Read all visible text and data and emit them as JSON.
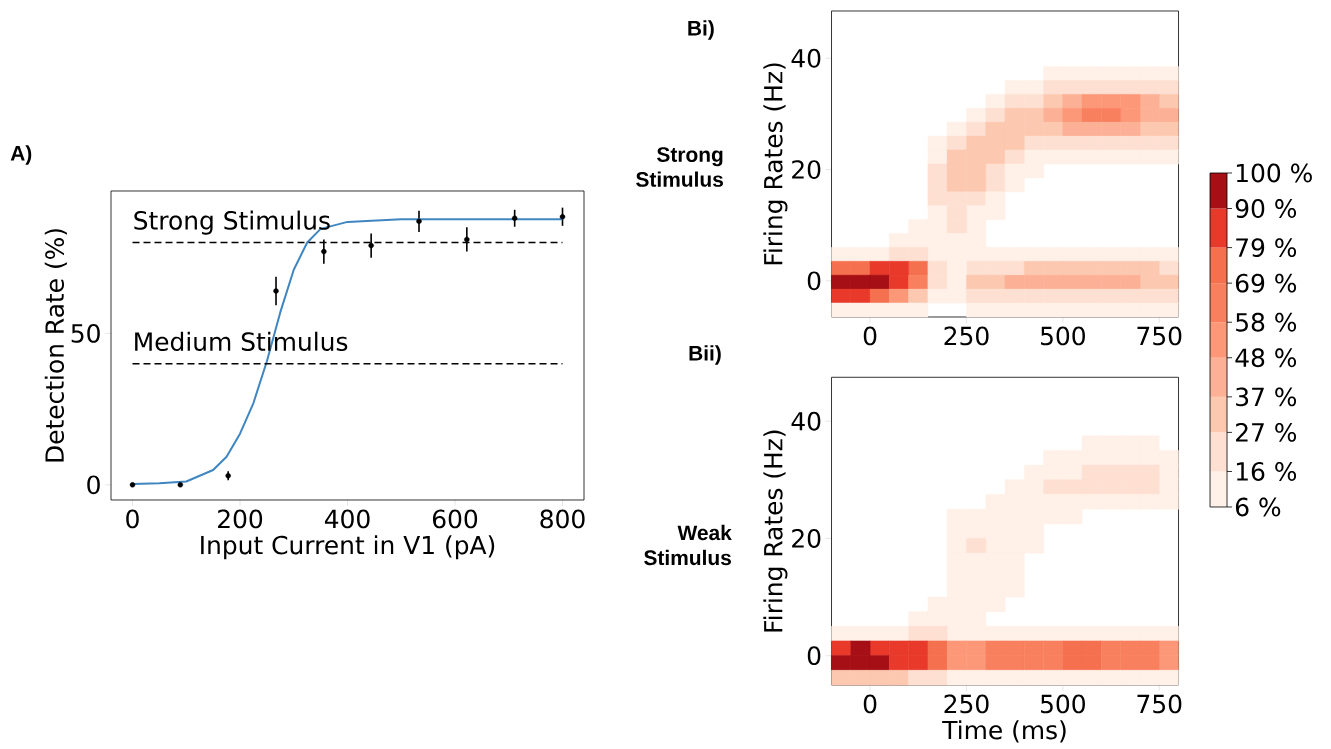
{
  "chart_data": [
    {
      "type": "scatter",
      "xlabel": "Input Current in V1 (pA)",
      "ylabel": "Detection Rate (%)",
      "xlim": [
        -40,
        840
      ],
      "ylim": [
        -5,
        97
      ],
      "xticks": [
        0,
        200,
        400,
        600,
        800
      ],
      "yticks": [
        0,
        50
      ],
      "series": [
        {
          "type": "scatter",
          "color": "#000000",
          "marker": "circle",
          "x": [
            0,
            89,
            178,
            267,
            356,
            444,
            533,
            622,
            711,
            800
          ],
          "values": [
            0,
            0,
            3,
            64,
            77,
            79,
            87,
            81,
            88,
            88.5
          ],
          "errors": [
            null,
            null,
            1.5,
            4.7,
            4,
            4,
            3.5,
            4,
            2.8,
            3
          ]
        },
        {
          "type": "line",
          "color": "#3f86c0",
          "x": [
            0,
            50,
            100,
            150,
            175,
            200,
            225,
            250,
            275,
            300,
            325,
            350,
            400,
            500,
            650,
            800
          ],
          "values": [
            0.3,
            0.5,
            1.1,
            4.9,
            9.3,
            16.9,
            27,
            40.8,
            57,
            71,
            80,
            84.5,
            86.8,
            87.7,
            87.7,
            87.7
          ]
        }
      ],
      "ref_lines": [
        {
          "axis": "y",
          "value": 80,
          "label": "Strong Stimulus",
          "line_style": "dashed"
        },
        {
          "axis": "y",
          "value": 40,
          "label": "Medium Stimulus",
          "line_style": "dashed"
        }
      ],
      "annotations": [
        "A)"
      ]
    },
    {
      "type": "scatter",
      "marker": "square",
      "ylabel": "Firing Rates (Hz)",
      "xlim": [
        -100,
        800
      ],
      "ylim": [
        -6.5,
        48.5
      ],
      "xticks": [
        0,
        250,
        500,
        750
      ],
      "yticks": [
        0,
        20,
        40
      ],
      "series": [
        {
          "x": [
            475,
            525,
            575,
            625,
            675,
            725,
            775
          ],
          "values": [
            37.25,
            37.25,
            37.25,
            37.25,
            37.25,
            37.25,
            37.25
          ],
          "color": "#fff0e8"
        },
        {
          "x": [
            375,
            425,
            475,
            525,
            575,
            625,
            675,
            725,
            775
          ],
          "values": [
            34.75,
            34.75,
            34.75,
            34.75,
            34.75,
            34.75,
            34.75,
            34.75,
            34.75
          ],
          "colors": [
            "#fff0e8",
            "#fff0e8",
            "#fee0d2",
            "#fee0d2",
            "#fee0d2",
            "#fee0d2",
            "#fee0d2",
            "#fee0d2",
            "#fee0d2"
          ]
        },
        {
          "x": [
            325,
            375,
            425,
            475,
            525,
            575,
            625,
            675,
            725,
            775
          ],
          "values": [
            32.25,
            32.25,
            32.25,
            32.25,
            32.25,
            32.25,
            32.25,
            32.25,
            32.25,
            32.25
          ],
          "colors": [
            "#fff0e8",
            "#fee0d2",
            "#fee0d2",
            "#fcc8b0",
            "#fcb095",
            "#fc9878",
            "#fc9878",
            "#fc9878",
            "#fcb095",
            "#fcc8b0"
          ]
        },
        {
          "x": [
            275,
            325,
            375,
            425,
            475,
            525,
            575,
            625,
            675,
            725,
            775
          ],
          "values": [
            29.75,
            29.75,
            29.75,
            29.75,
            29.75,
            29.75,
            29.75,
            29.75,
            29.75,
            29.75,
            29.75
          ],
          "colors": [
            "#fff0e8",
            "#fee0d2",
            "#fcc8b0",
            "#fcc8b0",
            "#fcb095",
            "#fc9878",
            "#f9805f",
            "#f9805f",
            "#fc9878",
            "#fcb095",
            "#fcb095"
          ]
        },
        {
          "x": [
            225,
            275,
            325,
            375,
            425,
            475,
            525,
            575,
            625,
            675,
            725,
            775
          ],
          "values": [
            27.25,
            27.25,
            27.25,
            27.25,
            27.25,
            27.25,
            27.25,
            27.25,
            27.25,
            27.25,
            27.25,
            27.25
          ],
          "colors": [
            "#fff0e8",
            "#fee0d2",
            "#fcc8b0",
            "#fcc8b0",
            "#fcc8b0",
            "#fcc8b0",
            "#fcb095",
            "#fcb095",
            "#fcb095",
            "#fcb095",
            "#fcc8b0",
            "#fcc8b0"
          ]
        },
        {
          "x": [
            175,
            225,
            275,
            325,
            375,
            425,
            475,
            525,
            575,
            625,
            675,
            725,
            775
          ],
          "values": [
            24.75,
            24.75,
            24.75,
            24.75,
            24.75,
            24.75,
            24.75,
            24.75,
            24.75,
            24.75,
            24.75,
            24.75,
            24.75
          ],
          "colors": [
            "#fff0e8",
            "#fee0d2",
            "#fcc8b0",
            "#fcc8b0",
            "#fcc8b0",
            "#fee0d2",
            "#fee0d2",
            "#fee0d2",
            "#fee0d2",
            "#fee0d2",
            "#fee0d2",
            "#fee0d2",
            "#fee0d2"
          ]
        },
        {
          "x": [
            175,
            225,
            275,
            325,
            375,
            425,
            475,
            525,
            575,
            625,
            675,
            725,
            775
          ],
          "values": [
            22.25,
            22.25,
            22.25,
            22.25,
            22.25,
            22.25,
            22.25,
            22.25,
            22.25,
            22.25,
            22.25,
            22.25,
            22.25
          ],
          "colors": [
            "#fff0e8",
            "#fcc8b0",
            "#fcc8b0",
            "#fcc8b0",
            "#fee0d2",
            "#fff0e8",
            "#fff0e8",
            "#fff0e8",
            "#fff0e8",
            "#fff0e8",
            "#fff0e8",
            "#fff0e8",
            "#fff0e8"
          ]
        },
        {
          "x": [
            175,
            225,
            275,
            325,
            375,
            425
          ],
          "values": [
            19.75,
            19.75,
            19.75,
            19.75,
            19.75,
            19.75
          ],
          "colors": [
            "#fee0d2",
            "#fcc8b0",
            "#fcc8b0",
            "#fee0d2",
            "#fff0e8",
            "#fff0e8"
          ]
        },
        {
          "x": [
            175,
            225,
            275,
            325,
            375
          ],
          "values": [
            17.25,
            17.25,
            17.25,
            17.25,
            17.25
          ],
          "colors": [
            "#fee0d2",
            "#fcc8b0",
            "#fcc8b0",
            "#fee0d2",
            "#fff0e8"
          ]
        },
        {
          "x": [
            175,
            225,
            275,
            325
          ],
          "values": [
            14.75,
            14.75,
            14.75,
            14.75
          ],
          "colors": [
            "#fee0d2",
            "#fee0d2",
            "#fee0d2",
            "#fff0e8"
          ]
        },
        {
          "x": [
            175,
            225,
            275,
            325
          ],
          "values": [
            12.25,
            12.25,
            12.25,
            12.25
          ],
          "colors": [
            "#fff0e8",
            "#fee0d2",
            "#fff0e8",
            "#fff0e8"
          ]
        },
        {
          "x": [
            125,
            175,
            225,
            275
          ],
          "values": [
            9.75,
            9.75,
            9.75,
            9.75
          ],
          "colors": [
            "#fff0e8",
            "#fff0e8",
            "#fee0d2",
            "#fff0e8"
          ]
        },
        {
          "x": [
            75,
            125,
            175,
            225,
            275
          ],
          "values": [
            7.25,
            7.25,
            7.25,
            7.25,
            7.25
          ],
          "color": "#fff0e8"
        },
        {
          "x": [
            -75,
            -25,
            25,
            75,
            125,
            175,
            225,
            275,
            325,
            375,
            425,
            475,
            525,
            575,
            625,
            675,
            725,
            775
          ],
          "values": [
            4.75,
            4.75,
            4.75,
            4.75,
            4.75,
            4.75,
            4.75,
            4.75,
            4.75,
            4.75,
            4.75,
            4.75,
            4.75,
            4.75,
            4.75,
            4.75,
            4.75,
            4.75
          ],
          "colors": [
            "#fff0e8",
            "#fff0e8",
            "#fff0e8",
            "#fee0d2",
            "#fee0d2",
            "#fff0e8",
            "#fff0e8",
            "#fff0e8",
            "#fff0e8",
            "#fff0e8",
            "#fff0e8",
            "#fff0e8",
            "#fff0e8",
            "#fff0e8",
            "#fff0e8",
            "#fff0e8",
            "#fff0e8",
            "#fff0e8"
          ]
        },
        {
          "x": [
            -75,
            -25,
            25,
            75,
            125,
            175,
            225,
            275,
            325,
            375,
            425,
            475,
            525,
            575,
            625,
            675,
            725,
            775
          ],
          "values": [
            2.25,
            2.25,
            2.25,
            2.25,
            2.25,
            2.25,
            2.25,
            2.25,
            2.25,
            2.25,
            2.25,
            2.25,
            2.25,
            2.25,
            2.25,
            2.25,
            2.25,
            2.25
          ],
          "colors": [
            "#f4704f",
            "#f4704f",
            "#e8392b",
            "#e8392b",
            "#f4704f",
            "#fee0d2",
            "#fff0e8",
            "#fee0d2",
            "#fee0d2",
            "#fee0d2",
            "#fcc8b0",
            "#fcc8b0",
            "#fcc8b0",
            "#fcc8b0",
            "#fcc8b0",
            "#fcc8b0",
            "#fcc8b0",
            "#fee0d2"
          ]
        },
        {
          "x": [
            -75,
            -25,
            25,
            75,
            125,
            175,
            225,
            275,
            325,
            375,
            425,
            475,
            525,
            575,
            625,
            675,
            725,
            775
          ],
          "values": [
            -0.25,
            -0.25,
            -0.25,
            -0.25,
            -0.25,
            -0.25,
            -0.25,
            -0.25,
            -0.25,
            -0.25,
            -0.25,
            -0.25,
            -0.25,
            -0.25,
            -0.25,
            -0.25,
            -0.25,
            -0.25
          ],
          "colors": [
            "#a50f15",
            "#a50f15",
            "#a50f15",
            "#e8392b",
            "#f9805f",
            "#fee0d2",
            "#fff0e8",
            "#fcc8b0",
            "#fcc8b0",
            "#fcb095",
            "#fcb095",
            "#fcb095",
            "#fcb095",
            "#fcb095",
            "#fcb095",
            "#fcb095",
            "#fcc8b0",
            "#fcc8b0"
          ]
        },
        {
          "x": [
            -75,
            -25,
            25,
            75,
            125,
            175,
            225,
            275,
            325,
            375,
            425,
            475,
            525,
            575,
            625,
            675,
            725,
            775
          ],
          "values": [
            -2.75,
            -2.75,
            -2.75,
            -2.75,
            -2.75,
            -2.75,
            -2.75,
            -2.75,
            -2.75,
            -2.75,
            -2.75,
            -2.75,
            -2.75,
            -2.75,
            -2.75,
            -2.75,
            -2.75,
            -2.75
          ],
          "colors": [
            "#e8392b",
            "#e8392b",
            "#f4704f",
            "#fc9878",
            "#fcc8b0",
            "#fff0e8",
            "#fff0e8",
            "#fee0d2",
            "#fee0d2",
            "#fee0d2",
            "#fee0d2",
            "#fee0d2",
            "#fee0d2",
            "#fee0d2",
            "#fee0d2",
            "#fee0d2",
            "#fee0d2",
            "#fee0d2"
          ]
        },
        {
          "x": [
            -75,
            -25,
            25,
            75,
            125,
            275,
            325,
            375,
            425,
            475,
            525,
            575,
            625,
            675,
            725,
            775
          ],
          "values": [
            -5.25,
            -5.25,
            -5.25,
            -5.25,
            -5.25,
            -5.25,
            -5.25,
            -5.25,
            -5.25,
            -5.25,
            -5.25,
            -5.25,
            -5.25,
            -5.25,
            -5.25,
            -5.25
          ],
          "color": "#fff0e8"
        }
      ],
      "clim": [
        6,
        100
      ],
      "cticks": [
        {
          "value": 6,
          "label": "6 %"
        },
        {
          "value": 16,
          "label": "16 %"
        },
        {
          "value": 27,
          "label": "27 %"
        },
        {
          "value": 37,
          "label": "37 %"
        },
        {
          "value": 48,
          "label": "48 %"
        },
        {
          "value": 58,
          "label": "58 %"
        },
        {
          "value": 69,
          "label": "69 %"
        },
        {
          "value": 79,
          "label": "79 %"
        },
        {
          "value": 90,
          "label": "90 %"
        },
        {
          "value": 100,
          "label": "100 %"
        }
      ],
      "annotations": [
        "Bi)",
        "Strong Stimulus"
      ]
    },
    {
      "type": "scatter",
      "marker": "square",
      "xlabel": "Time (ms)",
      "ylabel": "Firing Rates (Hz)",
      "xlim": [
        -100,
        800
      ],
      "ylim": [
        -5,
        47.5
      ],
      "xticks": [
        0,
        250,
        500,
        750
      ],
      "yticks": [
        0,
        20,
        40
      ],
      "series": [
        {
          "x": [
            575,
            625,
            675,
            725
          ],
          "values": [
            36.25,
            36.25,
            36.25,
            36.25
          ],
          "color": "#fff0e8"
        },
        {
          "x": [
            475,
            525,
            575,
            625,
            675,
            725,
            775
          ],
          "values": [
            33.75,
            33.75,
            33.75,
            33.75,
            33.75,
            33.75,
            33.75
          ],
          "color": "#fff0e8"
        },
        {
          "x": [
            425,
            475,
            525,
            575,
            625,
            675,
            725,
            775
          ],
          "values": [
            31.25,
            31.25,
            31.25,
            31.25,
            31.25,
            31.25,
            31.25,
            31.25
          ],
          "colors": [
            "#fff0e8",
            "#fff0e8",
            "#fff0e8",
            "#fee0d2",
            "#fee0d2",
            "#fee0d2",
            "#fee0d2",
            "#fff0e8"
          ]
        },
        {
          "x": [
            375,
            425,
            475,
            525,
            575,
            625,
            675,
            725,
            775
          ],
          "values": [
            28.75,
            28.75,
            28.75,
            28.75,
            28.75,
            28.75,
            28.75,
            28.75,
            28.75
          ],
          "colors": [
            "#fff0e8",
            "#fff0e8",
            "#fee0d2",
            "#fee0d2",
            "#fee0d2",
            "#fee0d2",
            "#fee0d2",
            "#fee0d2",
            "#fff0e8"
          ]
        },
        {
          "x": [
            325,
            375,
            425,
            475,
            525,
            575,
            625,
            675,
            725,
            775
          ],
          "values": [
            26.25,
            26.25,
            26.25,
            26.25,
            26.25,
            26.25,
            26.25,
            26.25,
            26.25,
            26.25
          ],
          "color": "#fff0e8"
        },
        {
          "x": [
            225,
            275,
            325,
            375,
            425,
            475,
            525
          ],
          "values": [
            23.75,
            23.75,
            23.75,
            23.75,
            23.75,
            23.75,
            23.75
          ],
          "color": "#fff0e8"
        },
        {
          "x": [
            225,
            275,
            325,
            375,
            425
          ],
          "values": [
            21.25,
            21.25,
            21.25,
            21.25,
            21.25
          ],
          "color": "#fff0e8"
        },
        {
          "x": [
            225,
            275,
            325,
            375,
            425
          ],
          "values": [
            18.75,
            18.75,
            18.75,
            18.75,
            18.75
          ],
          "colors": [
            "#fff0e8",
            "#fee0d2",
            "#fff0e8",
            "#fff0e8",
            "#fff0e8"
          ]
        },
        {
          "x": [
            225,
            275,
            325,
            375
          ],
          "values": [
            16.25,
            16.25,
            16.25,
            16.25
          ],
          "color": "#fff0e8"
        },
        {
          "x": [
            225,
            275,
            325,
            375
          ],
          "values": [
            13.75,
            13.75,
            13.75,
            13.75
          ],
          "color": "#fff0e8"
        },
        {
          "x": [
            225,
            275,
            325,
            375
          ],
          "values": [
            11.25,
            11.25,
            11.25,
            11.25
          ],
          "color": "#fff0e8"
        },
        {
          "x": [
            175,
            225,
            275,
            325
          ],
          "values": [
            8.75,
            8.75,
            8.75,
            8.75
          ],
          "color": "#fff0e8"
        },
        {
          "x": [
            125,
            175,
            225,
            275
          ],
          "values": [
            6.25,
            6.25,
            6.25,
            6.25
          ],
          "color": "#fff0e8"
        },
        {
          "x": [
            -75,
            -25,
            25,
            75,
            125,
            175,
            225,
            275,
            325,
            375,
            425,
            475,
            525,
            575,
            625,
            675,
            725,
            775
          ],
          "values": [
            3.75,
            3.75,
            3.75,
            3.75,
            3.75,
            3.75,
            3.75,
            3.75,
            3.75,
            3.75,
            3.75,
            3.75,
            3.75,
            3.75,
            3.75,
            3.75,
            3.75,
            3.75
          ],
          "colors": [
            "#fff0e8",
            "#fff0e8",
            "#fff0e8",
            "#fff0e8",
            "#fee0d2",
            "#fee0d2",
            "#fff0e8",
            "#fff0e8",
            "#fff0e8",
            "#fff0e8",
            "#fff0e8",
            "#fff0e8",
            "#fff0e8",
            "#fff0e8",
            "#fff0e8",
            "#fff0e8",
            "#fff0e8",
            "#fff0e8"
          ]
        },
        {
          "x": [
            -75,
            -25,
            25,
            75,
            125,
            175,
            225,
            275,
            325,
            375,
            425,
            475,
            525,
            575,
            625,
            675,
            725,
            775
          ],
          "values": [
            1.25,
            1.25,
            1.25,
            1.25,
            1.25,
            1.25,
            1.25,
            1.25,
            1.25,
            1.25,
            1.25,
            1.25,
            1.25,
            1.25,
            1.25,
            1.25,
            1.25,
            1.25
          ],
          "colors": [
            "#e8392b",
            "#a50f15",
            "#e8392b",
            "#e8392b",
            "#e8392b",
            "#f4704f",
            "#fc9878",
            "#fc9878",
            "#f9805f",
            "#f9805f",
            "#f9805f",
            "#f9805f",
            "#f4704f",
            "#f4704f",
            "#f9805f",
            "#f9805f",
            "#f9805f",
            "#fc9878"
          ]
        },
        {
          "x": [
            -75,
            -25,
            25,
            75,
            125,
            175,
            225,
            275,
            325,
            375,
            425,
            475,
            525,
            575,
            625,
            675,
            725,
            775
          ],
          "values": [
            -1.25,
            -1.25,
            -1.25,
            -1.25,
            -1.25,
            -1.25,
            -1.25,
            -1.25,
            -1.25,
            -1.25,
            -1.25,
            -1.25,
            -1.25,
            -1.25,
            -1.25,
            -1.25,
            -1.25,
            -1.25
          ],
          "colors": [
            "#a50f15",
            "#a50f15",
            "#a50f15",
            "#e8392b",
            "#e8392b",
            "#f4704f",
            "#fc9878",
            "#fc9878",
            "#f9805f",
            "#f9805f",
            "#f9805f",
            "#f9805f",
            "#f4704f",
            "#f4704f",
            "#f9805f",
            "#f9805f",
            "#f9805f",
            "#fc9878"
          ]
        },
        {
          "x": [
            -75,
            -25,
            25,
            75,
            125,
            175,
            225,
            275,
            325,
            375,
            425,
            475,
            525,
            575,
            625,
            675,
            725,
            775
          ],
          "values": [
            -3.75,
            -3.75,
            -3.75,
            -3.75,
            -3.75,
            -3.75,
            -3.75,
            -3.75,
            -3.75,
            -3.75,
            -3.75,
            -3.75,
            -3.75,
            -3.75,
            -3.75,
            -3.75,
            -3.75,
            -3.75
          ],
          "colors": [
            "#fcc8b0",
            "#fcc8b0",
            "#fcc8b0",
            "#fcc8b0",
            "#fee0d2",
            "#fee0d2",
            "#fff0e8",
            "#fff0e8",
            "#fff0e8",
            "#fff0e8",
            "#fff0e8",
            "#fff0e8",
            "#fff0e8",
            "#fff0e8",
            "#fff0e8",
            "#fff0e8",
            "#fff0e8",
            "#fff0e8"
          ]
        }
      ],
      "annotations": [
        "Bii)",
        "Weak Stimulus"
      ]
    }
  ]
}
